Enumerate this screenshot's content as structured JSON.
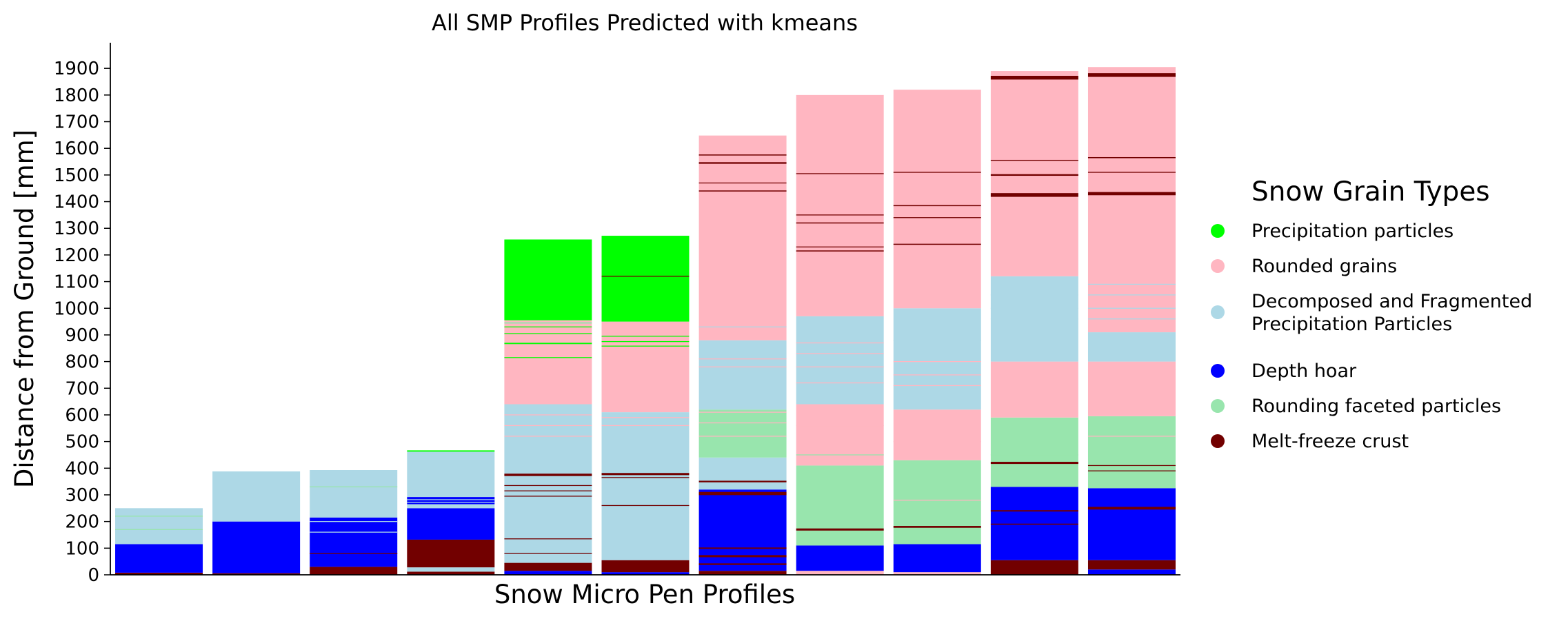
{
  "chart_data": {
    "type": "bar",
    "stacked": true,
    "title": "All SMP Profiles Predicted with kmeans",
    "xlabel": "Snow Micro Pen Profiles",
    "ylabel": "Distance from Ground [mm]",
    "ylim": [
      0,
      2000
    ],
    "yticks": [
      0,
      100,
      200,
      300,
      400,
      500,
      600,
      700,
      800,
      900,
      1000,
      1100,
      1200,
      1300,
      1400,
      1500,
      1600,
      1700,
      1800,
      1900
    ],
    "grid": false,
    "legend": {
      "title": "Snow Grain Types",
      "placement": "right",
      "entries": [
        {
          "key": "pp",
          "label": "Precipitation particles",
          "color": "#00ff00"
        },
        {
          "key": "rg",
          "label": "Rounded grains",
          "color": "#ffb6c1"
        },
        {
          "key": "df",
          "label": "Decomposed and Fragmented\nPrecipitation Particles",
          "color": "#add8e6"
        },
        {
          "key": "dh",
          "label": "Depth hoar",
          "color": "#0000ff"
        },
        {
          "key": "rgwp",
          "label": "Rounding faceted particles",
          "color": "#98e5ad"
        },
        {
          "key": "mfcr",
          "label": "Melt-freeze crust",
          "color": "#720000"
        }
      ]
    },
    "profiles": [
      {
        "height": 250,
        "layers": [
          [
            "mfcr",
            0,
            8
          ],
          [
            "dh",
            8,
            115
          ],
          [
            "df",
            115,
            250
          ]
        ],
        "lines": [
          [
            "rgwp",
            170,
            2
          ],
          [
            "rgwp",
            220,
            2
          ],
          [
            "df",
            240,
            2
          ]
        ]
      },
      {
        "height": 388,
        "layers": [
          [
            "mfcr",
            0,
            6
          ],
          [
            "dh",
            6,
            200
          ],
          [
            "df",
            200,
            388
          ]
        ],
        "lines": [
          [
            "df",
            205,
            2
          ]
        ]
      },
      {
        "height": 393,
        "layers": [
          [
            "mfcr",
            0,
            30
          ],
          [
            "dh",
            30,
            215
          ],
          [
            "df",
            215,
            393
          ]
        ],
        "lines": [
          [
            "mfcr",
            80,
            2
          ],
          [
            "df",
            160,
            2
          ],
          [
            "df",
            200,
            3
          ],
          [
            "rgwp",
            330,
            2
          ]
        ]
      },
      {
        "height": 467,
        "layers": [
          [
            "mfcr",
            0,
            12
          ],
          [
            "df",
            12,
            28
          ],
          [
            "mfcr",
            28,
            132
          ],
          [
            "dh",
            132,
            250
          ],
          [
            "df",
            250,
            265
          ],
          [
            "dh",
            265,
            292
          ],
          [
            "df",
            292,
            462
          ],
          [
            "pp",
            462,
            467
          ]
        ],
        "lines": [
          [
            "df",
            272,
            3
          ],
          [
            "df",
            282,
            3
          ]
        ]
      },
      {
        "height": 1258,
        "layers": [
          [
            "dh",
            0,
            15
          ],
          [
            "mfcr",
            15,
            45
          ],
          [
            "df",
            45,
            640
          ],
          [
            "rg",
            640,
            955
          ],
          [
            "pp",
            955,
            1258
          ]
        ],
        "lines": [
          [
            "mfcr",
            80,
            2
          ],
          [
            "mfcr",
            135,
            3
          ],
          [
            "mfcr",
            295,
            3
          ],
          [
            "mfcr",
            315,
            2
          ],
          [
            "mfcr",
            335,
            3
          ],
          [
            "mfcr",
            375,
            9
          ],
          [
            "rg",
            520,
            3
          ],
          [
            "rg",
            560,
            3
          ],
          [
            "rg",
            600,
            3
          ],
          [
            "pp",
            815,
            3
          ],
          [
            "pp",
            868,
            5
          ],
          [
            "pp",
            905,
            3
          ],
          [
            "pp",
            930,
            3
          ],
          [
            "rgwp",
            945,
            5
          ]
        ]
      },
      {
        "height": 1272,
        "layers": [
          [
            "dh",
            0,
            10
          ],
          [
            "mfcr",
            10,
            55
          ],
          [
            "df",
            55,
            610
          ],
          [
            "rg",
            610,
            950
          ],
          [
            "pp",
            950,
            1272
          ]
        ],
        "lines": [
          [
            "mfcr",
            260,
            2
          ],
          [
            "mfcr",
            365,
            3
          ],
          [
            "mfcr",
            378,
            8
          ],
          [
            "rg",
            560,
            3
          ],
          [
            "rg",
            590,
            3
          ],
          [
            "pp",
            858,
            3
          ],
          [
            "pp",
            875,
            3
          ],
          [
            "pp",
            895,
            3
          ],
          [
            "mfcr",
            1120,
            2
          ]
        ]
      },
      {
        "height": 1648,
        "layers": [
          [
            "mfcr",
            0,
            15
          ],
          [
            "dh",
            15,
            100
          ],
          [
            "dh",
            100,
            320
          ],
          [
            "df",
            320,
            440
          ],
          [
            "rgwp",
            440,
            620
          ],
          [
            "df",
            620,
            880
          ],
          [
            "rg",
            880,
            1648
          ]
        ],
        "lines": [
          [
            "mfcr",
            40,
            6
          ],
          [
            "mfcr",
            70,
            8
          ],
          [
            "mfcr",
            100,
            5
          ],
          [
            "mfcr",
            305,
            12
          ],
          [
            "mfcr",
            350,
            6
          ],
          [
            "rg",
            520,
            3
          ],
          [
            "rg",
            570,
            3
          ],
          [
            "rg",
            610,
            3
          ],
          [
            "rg",
            780,
            3
          ],
          [
            "rg",
            810,
            3
          ],
          [
            "df",
            930,
            3
          ],
          [
            "mfcr",
            1440,
            4
          ],
          [
            "mfcr",
            1470,
            2
          ],
          [
            "mfcr",
            1545,
            6
          ],
          [
            "mfcr",
            1575,
            4
          ]
        ]
      },
      {
        "height": 1800,
        "layers": [
          [
            "rg",
            0,
            15
          ],
          [
            "dh",
            15,
            110
          ],
          [
            "rgwp",
            110,
            410
          ],
          [
            "rg",
            410,
            640
          ],
          [
            "df",
            640,
            970
          ],
          [
            "rg",
            970,
            1800
          ]
        ],
        "lines": [
          [
            "mfcr",
            170,
            8
          ],
          [
            "rgwp",
            450,
            3
          ],
          [
            "rg",
            560,
            3
          ],
          [
            "rg",
            720,
            3
          ],
          [
            "rg",
            780,
            3
          ],
          [
            "rg",
            830,
            3
          ],
          [
            "rg",
            870,
            3
          ],
          [
            "mfcr",
            1215,
            4
          ],
          [
            "mfcr",
            1230,
            3
          ],
          [
            "mfcr",
            1320,
            4
          ],
          [
            "mfcr",
            1350,
            3
          ],
          [
            "mfcr",
            1505,
            2
          ]
        ]
      },
      {
        "height": 1820,
        "layers": [
          [
            "rg",
            0,
            10
          ],
          [
            "dh",
            10,
            115
          ],
          [
            "rgwp",
            115,
            430
          ],
          [
            "rg",
            430,
            620
          ],
          [
            "df",
            620,
            1000
          ],
          [
            "rg",
            1000,
            1820
          ]
        ],
        "lines": [
          [
            "mfcr",
            180,
            7
          ],
          [
            "rg",
            280,
            3
          ],
          [
            "rg",
            500,
            3
          ],
          [
            "rg",
            710,
            3
          ],
          [
            "rg",
            750,
            3
          ],
          [
            "rg",
            800,
            3
          ],
          [
            "df",
            880,
            3
          ],
          [
            "mfcr",
            1240,
            4
          ],
          [
            "mfcr",
            1340,
            2
          ],
          [
            "mfcr",
            1385,
            4
          ],
          [
            "mfcr",
            1510,
            3
          ]
        ]
      },
      {
        "height": 1890,
        "layers": [
          [
            "mfcr",
            0,
            55
          ],
          [
            "dh",
            55,
            330
          ],
          [
            "rgwp",
            330,
            590
          ],
          [
            "rg",
            590,
            800
          ],
          [
            "df",
            800,
            1120
          ],
          [
            "rg",
            1120,
            1890
          ]
        ],
        "lines": [
          [
            "mfcr",
            190,
            4
          ],
          [
            "mfcr",
            240,
            5
          ],
          [
            "mfcr",
            420,
            8
          ],
          [
            "rgwp",
            450,
            3
          ],
          [
            "df",
            960,
            3
          ],
          [
            "df",
            1000,
            3
          ],
          [
            "df",
            1050,
            3
          ],
          [
            "mfcr",
            1425,
            14
          ],
          [
            "mfcr",
            1500,
            6
          ],
          [
            "mfcr",
            1555,
            3
          ],
          [
            "mfcr",
            1865,
            14
          ]
        ]
      },
      {
        "height": 1905,
        "layers": [
          [
            "dh",
            0,
            20
          ],
          [
            "mfcr",
            20,
            55
          ],
          [
            "dh",
            55,
            325
          ],
          [
            "rgwp",
            325,
            595
          ],
          [
            "rg",
            595,
            800
          ],
          [
            "df",
            800,
            910
          ],
          [
            "rg",
            910,
            1905
          ]
        ],
        "lines": [
          [
            "mfcr",
            250,
            10
          ],
          [
            "mfcr",
            390,
            3
          ],
          [
            "mfcr",
            410,
            3
          ],
          [
            "rg",
            520,
            3
          ],
          [
            "rg",
            770,
            3
          ],
          [
            "df",
            960,
            3
          ],
          [
            "df",
            1000,
            3
          ],
          [
            "df",
            1050,
            3
          ],
          [
            "df",
            1090,
            3
          ],
          [
            "mfcr",
            1430,
            12
          ],
          [
            "mfcr",
            1510,
            3
          ],
          [
            "mfcr",
            1565,
            4
          ],
          [
            "mfcr",
            1875,
            14
          ]
        ]
      }
    ]
  }
}
